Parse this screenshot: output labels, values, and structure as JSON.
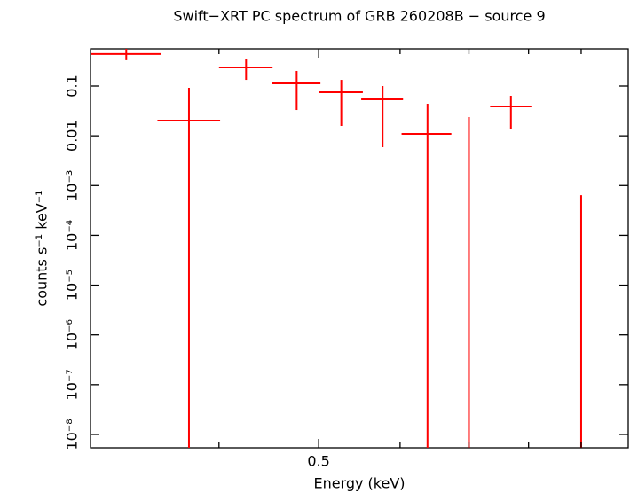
{
  "chart_data": {
    "type": "errorbar",
    "title": "Swift−XRT PC spectrum of GRB 260208B − source 9",
    "xlabel": "Energy (keV)",
    "ylabel": "counts s⁻¹ keV⁻¹",
    "color": "#ff0000",
    "log_x": true,
    "log_y": true,
    "xlim": [
      0.3,
      1.0
    ],
    "ylim": [
      5.4e-09,
      0.56
    ],
    "xticks": [
      0.5
    ],
    "xminor_ticks": [
      0.4,
      0.6,
      0.7,
      0.8,
      0.9
    ],
    "yticks": [
      {
        "value": 0.1,
        "label": "0.1"
      },
      {
        "value": 0.01,
        "label": "0.01"
      },
      {
        "value": 0.001,
        "label": "10⁻³"
      },
      {
        "value": 0.0001,
        "label": "10⁻⁴"
      },
      {
        "value": 1e-05,
        "label": "10⁻⁵"
      },
      {
        "value": 1e-06,
        "label": "10⁻⁶"
      },
      {
        "value": 1e-07,
        "label": "10⁻⁷"
      },
      {
        "value": 1e-08,
        "label": "10⁻⁸"
      }
    ],
    "x": [
      0.325,
      0.374,
      0.425,
      0.476,
      0.526,
      0.577,
      0.638,
      0.7,
      0.769,
      0.9
    ],
    "x_low": [
      0.3,
      0.3485,
      0.4,
      0.45,
      0.5,
      0.55,
      0.602,
      null,
      0.734,
      null
    ],
    "x_high": [
      0.351,
      0.401,
      0.451,
      0.502,
      0.552,
      0.604,
      0.673,
      null,
      0.805,
      null
    ],
    "values": [
      0.44,
      0.0202,
      0.237,
      0.113,
      0.075,
      0.054,
      0.0109,
      null,
      0.0389,
      null
    ],
    "y_low": [
      0.33,
      null,
      0.133,
      0.033,
      0.0158,
      0.0059,
      null,
      null,
      0.0139,
      null
    ],
    "y_high": [
      0.58,
      0.092,
      0.343,
      0.201,
      0.133,
      0.1,
      0.044,
      0.0238,
      0.0637,
      0.00064
    ]
  }
}
